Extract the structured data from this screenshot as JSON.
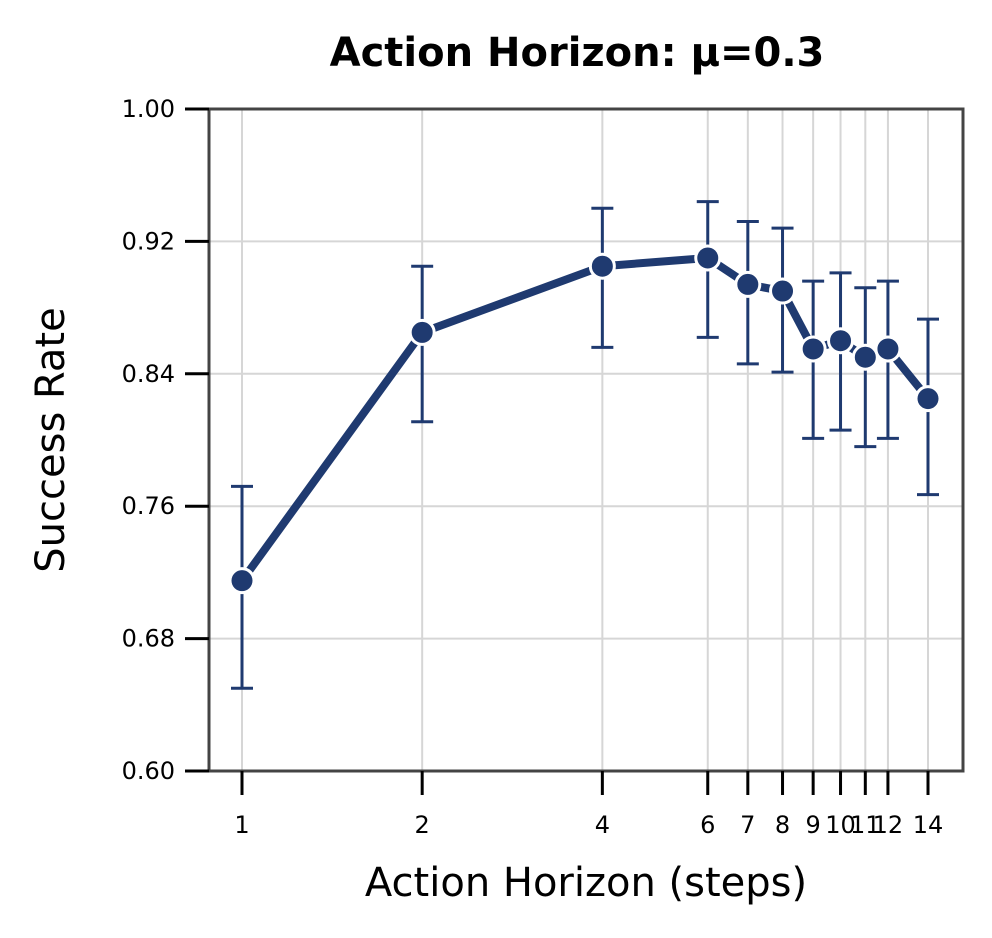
{
  "chart_data": {
    "type": "line",
    "title": "Action Horizon: μ=0.3",
    "xlabel": "Action Horizon (steps)",
    "ylabel": "Success Rate",
    "x_scale": "log",
    "x": [
      1,
      2,
      4,
      6,
      7,
      8,
      9,
      10,
      11,
      12,
      14
    ],
    "x_tick_labels": [
      "1",
      "2",
      "4",
      "6",
      "7",
      "8",
      "9",
      "10",
      "11",
      "12",
      "14"
    ],
    "ylim": [
      0.6,
      1.0
    ],
    "y_ticks": [
      0.6,
      0.68,
      0.76,
      0.84,
      0.92,
      1.0
    ],
    "y_tick_labels": [
      "0.60",
      "0.68",
      "0.76",
      "0.84",
      "0.92",
      "1.00"
    ],
    "grid": true,
    "series": [
      {
        "name": "Success Rate",
        "color": "#1f3a70",
        "values": [
          0.715,
          0.865,
          0.905,
          0.91,
          0.894,
          0.89,
          0.855,
          0.86,
          0.85,
          0.855,
          0.825
        ],
        "error_low": [
          0.65,
          0.811,
          0.856,
          0.862,
          0.846,
          0.841,
          0.801,
          0.806,
          0.796,
          0.801,
          0.767
        ],
        "error_high": [
          0.772,
          0.905,
          0.94,
          0.944,
          0.932,
          0.928,
          0.896,
          0.901,
          0.892,
          0.896,
          0.873
        ]
      }
    ]
  }
}
